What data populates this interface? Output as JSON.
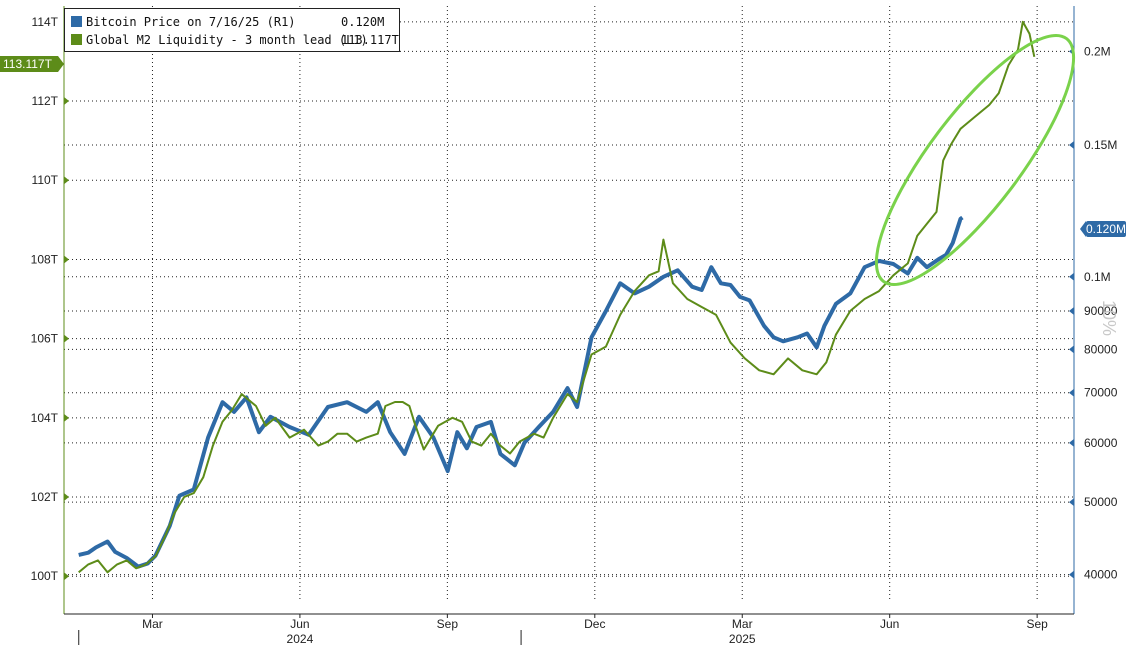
{
  "legend": {
    "btc_label": "Bitcoin Price on 7/16/25 (R1)",
    "btc_value": "0.120M",
    "m2_label": "Global M2 Liquidity - 3 month lead (L1)",
    "m2_value": "113.117T"
  },
  "badges": {
    "left": "113.117T",
    "right": "0.120M"
  },
  "watermark": "10%",
  "chart_data": {
    "type": "line",
    "series": [
      {
        "name": "Bitcoin Price on 7/16/25 (R1)",
        "axis": "right",
        "color": "#2e6aa6",
        "points": [
          [
            0.0,
            42500
          ],
          [
            0.1,
            42800
          ],
          [
            0.18,
            43500
          ],
          [
            0.3,
            44300
          ],
          [
            0.38,
            42900
          ],
          [
            0.5,
            42100
          ],
          [
            0.62,
            41000
          ],
          [
            0.72,
            41400
          ],
          [
            0.8,
            42400
          ],
          [
            0.95,
            46500
          ],
          [
            1.05,
            51000
          ],
          [
            1.2,
            52000
          ],
          [
            1.35,
            61000
          ],
          [
            1.5,
            68000
          ],
          [
            1.62,
            66000
          ],
          [
            1.75,
            69000
          ],
          [
            1.88,
            62000
          ],
          [
            2.0,
            65000
          ],
          [
            2.2,
            63000
          ],
          [
            2.4,
            61500
          ],
          [
            2.6,
            67000
          ],
          [
            2.8,
            68000
          ],
          [
            3.0,
            66000
          ],
          [
            3.12,
            68000
          ],
          [
            3.25,
            62000
          ],
          [
            3.4,
            58000
          ],
          [
            3.55,
            65000
          ],
          [
            3.7,
            61000
          ],
          [
            3.85,
            55000
          ],
          [
            3.95,
            62000
          ],
          [
            4.05,
            59000
          ],
          [
            4.15,
            63000
          ],
          [
            4.3,
            64000
          ],
          [
            4.4,
            58000
          ],
          [
            4.55,
            56000
          ],
          [
            4.65,
            60000
          ],
          [
            4.8,
            63000
          ],
          [
            4.95,
            66000
          ],
          [
            5.1,
            71000
          ],
          [
            5.2,
            67000
          ],
          [
            5.35,
            83000
          ],
          [
            5.5,
            90000
          ],
          [
            5.65,
            98000
          ],
          [
            5.8,
            95000
          ],
          [
            5.95,
            97000
          ],
          [
            6.1,
            100000
          ],
          [
            6.25,
            102000
          ],
          [
            6.4,
            97000
          ],
          [
            6.5,
            96000
          ],
          [
            6.6,
            103000
          ],
          [
            6.7,
            98000
          ],
          [
            6.8,
            97500
          ],
          [
            6.9,
            94000
          ],
          [
            7.0,
            93000
          ],
          [
            7.15,
            86000
          ],
          [
            7.25,
            83000
          ],
          [
            7.35,
            82000
          ],
          [
            7.5,
            83000
          ],
          [
            7.6,
            84000
          ],
          [
            7.7,
            80500
          ],
          [
            7.78,
            86000
          ],
          [
            7.9,
            92000
          ],
          [
            8.05,
            95000
          ],
          [
            8.2,
            103000
          ],
          [
            8.35,
            105000
          ],
          [
            8.5,
            104000
          ],
          [
            8.65,
            101000
          ],
          [
            8.75,
            106000
          ],
          [
            8.85,
            103000
          ],
          [
            8.97,
            105500
          ],
          [
            9.05,
            107000
          ],
          [
            9.12,
            111000
          ],
          [
            9.2,
            119500
          ],
          [
            9.22,
            120000
          ]
        ]
      },
      {
        "name": "Global M2 Liquidity - 3 month lead (L1)",
        "axis": "left",
        "color": "#5d8c19",
        "points": [
          [
            0.0,
            100.1
          ],
          [
            0.1,
            100.3
          ],
          [
            0.2,
            100.4
          ],
          [
            0.3,
            100.1
          ],
          [
            0.4,
            100.3
          ],
          [
            0.5,
            100.4
          ],
          [
            0.6,
            100.2
          ],
          [
            0.7,
            100.3
          ],
          [
            0.8,
            100.5
          ],
          [
            0.9,
            101.0
          ],
          [
            1.0,
            101.6
          ],
          [
            1.1,
            102.0
          ],
          [
            1.2,
            102.1
          ],
          [
            1.3,
            102.5
          ],
          [
            1.4,
            103.3
          ],
          [
            1.5,
            103.9
          ],
          [
            1.6,
            104.2
          ],
          [
            1.7,
            104.6
          ],
          [
            1.85,
            104.3
          ],
          [
            1.95,
            103.8
          ],
          [
            2.05,
            104.0
          ],
          [
            2.2,
            103.5
          ],
          [
            2.35,
            103.7
          ],
          [
            2.5,
            103.3
          ],
          [
            2.6,
            103.4
          ],
          [
            2.7,
            103.6
          ],
          [
            2.8,
            103.6
          ],
          [
            2.9,
            103.4
          ],
          [
            3.0,
            103.5
          ],
          [
            3.12,
            103.6
          ],
          [
            3.2,
            104.3
          ],
          [
            3.3,
            104.4
          ],
          [
            3.38,
            104.4
          ],
          [
            3.45,
            104.3
          ],
          [
            3.5,
            103.9
          ],
          [
            3.6,
            103.2
          ],
          [
            3.75,
            103.8
          ],
          [
            3.9,
            104.0
          ],
          [
            4.0,
            103.9
          ],
          [
            4.1,
            103.4
          ],
          [
            4.2,
            103.3
          ],
          [
            4.3,
            103.6
          ],
          [
            4.4,
            103.3
          ],
          [
            4.5,
            103.1
          ],
          [
            4.6,
            103.4
          ],
          [
            4.75,
            103.6
          ],
          [
            4.85,
            103.5
          ],
          [
            4.95,
            104.0
          ],
          [
            5.1,
            104.6
          ],
          [
            5.2,
            104.4
          ],
          [
            5.35,
            105.6
          ],
          [
            5.5,
            105.8
          ],
          [
            5.65,
            106.6
          ],
          [
            5.8,
            107.2
          ],
          [
            5.95,
            107.6
          ],
          [
            6.05,
            107.7
          ],
          [
            6.1,
            108.5
          ],
          [
            6.2,
            107.4
          ],
          [
            6.35,
            107.0
          ],
          [
            6.5,
            106.8
          ],
          [
            6.65,
            106.6
          ],
          [
            6.8,
            105.9
          ],
          [
            6.95,
            105.5
          ],
          [
            7.1,
            105.2
          ],
          [
            7.25,
            105.1
          ],
          [
            7.4,
            105.5
          ],
          [
            7.55,
            105.2
          ],
          [
            7.7,
            105.1
          ],
          [
            7.8,
            105.4
          ],
          [
            7.9,
            106.1
          ],
          [
            8.05,
            106.7
          ],
          [
            8.2,
            107.0
          ],
          [
            8.35,
            107.2
          ],
          [
            8.5,
            107.6
          ],
          [
            8.65,
            107.9
          ],
          [
            8.75,
            108.6
          ],
          [
            8.85,
            108.9
          ],
          [
            8.95,
            109.2
          ],
          [
            9.02,
            110.5
          ],
          [
            9.1,
            110.9
          ],
          [
            9.2,
            111.3
          ],
          [
            9.35,
            111.6
          ],
          [
            9.5,
            111.9
          ],
          [
            9.6,
            112.2
          ],
          [
            9.7,
            112.9
          ],
          [
            9.8,
            113.3
          ],
          [
            9.85,
            114.0
          ],
          [
            9.92,
            113.7
          ],
          [
            9.97,
            113.117
          ]
        ]
      }
    ],
    "left_axis": {
      "ticks": [
        "100T",
        "102T",
        "104T",
        "106T",
        "108T",
        "110T",
        "112T",
        "114T"
      ],
      "values": [
        100,
        102,
        104,
        106,
        108,
        110,
        112,
        114
      ],
      "ylim": [
        99.4,
        114.4
      ]
    },
    "right_axis": {
      "ticks": [
        "40000",
        "50000",
        "60000",
        "70000",
        "80000",
        "90000",
        "0.1M",
        "0.15M",
        "0.2M"
      ],
      "values": [
        40000,
        50000,
        60000,
        70000,
        80000,
        90000,
        100000,
        150000,
        200000
      ],
      "scale": "log"
    },
    "x_axis": {
      "tick_labels": [
        "Mar",
        "Jun",
        "Sep",
        "Dec",
        "Mar",
        "Jun",
        "Sep"
      ],
      "tick_pos": [
        1.0,
        3.0,
        5.0,
        7.0,
        9.0,
        11.0,
        13.0
      ],
      "year_labels": [
        "2024",
        "2025"
      ],
      "year_pos": [
        3.0,
        9.0
      ],
      "xlim": [
        -0.2,
        13.5
      ]
    },
    "grid": true,
    "legend_position": "top-left",
    "annotation": "green ellipse highlighting recent divergence"
  }
}
